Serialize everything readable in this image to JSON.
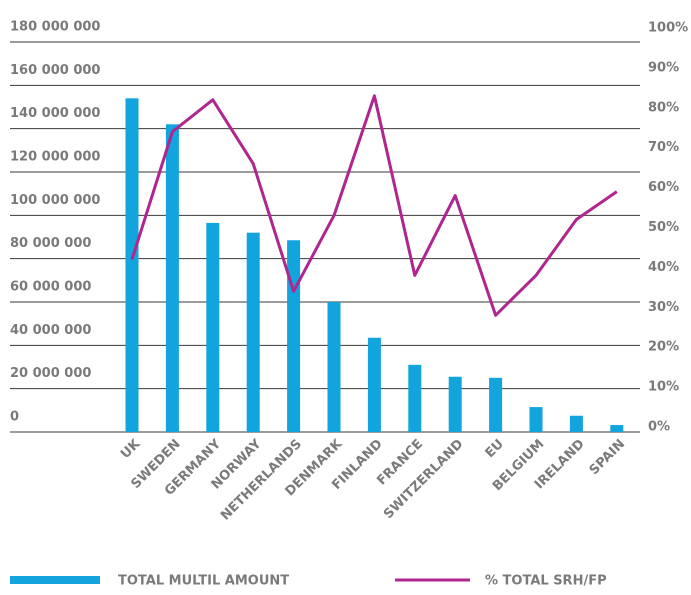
{
  "chart_data": {
    "type": "bar_line",
    "categories": [
      "UK",
      "SWEDEN",
      "GERMANY",
      "NORWAY",
      "NETHERLANDS",
      "DENMARK",
      "FINLAND",
      "FRANCE",
      "SWITZERLAND",
      "EU",
      "BELGIUM",
      "IRELAND",
      "SPAIN"
    ],
    "series": [
      {
        "name": "TOTAL MULTIL AMOUNT",
        "type": "bar",
        "color": "#12a4dd",
        "values": [
          154000000,
          142000000,
          96500000,
          92000000,
          88500000,
          60000000,
          43500000,
          31000000,
          25500000,
          25000000,
          11500000,
          7500000,
          3200000
        ]
      },
      {
        "name": "% TOTAL SRH/FP",
        "type": "line",
        "axis": "y2",
        "color": "#b0268f",
        "values": [
          42,
          74,
          82,
          66,
          34,
          53,
          83,
          38,
          58,
          28,
          38,
          52,
          59
        ]
      }
    ],
    "ylim": [
      0,
      180000000
    ],
    "yticks": [
      0,
      {
        "value": 20000000,
        "label": "20 000 000"
      },
      {
        "value": 40000000,
        "label": "40 000 000"
      },
      {
        "value": 60000000,
        "label": "60 000 000"
      },
      {
        "value": 80000000,
        "label": "80 000 000"
      },
      {
        "value": 100000000,
        "label": "100 000 000"
      },
      {
        "value": 120000000,
        "label": "120 000 000"
      },
      {
        "value": 140000000,
        "label": "140 000 000"
      },
      {
        "value": 160000000,
        "label": "160 000 000"
      },
      {
        "value": 180000000,
        "label": "180 000 000"
      }
    ],
    "y2lim": [
      0,
      100
    ],
    "y2ticks": [
      {
        "value": 0,
        "label": "0%"
      },
      {
        "value": 10,
        "label": "10%"
      },
      {
        "value": 20,
        "label": "20%"
      },
      {
        "value": 30,
        "label": "30%"
      },
      {
        "value": 40,
        "label": "40%"
      },
      {
        "value": 50,
        "label": "50%"
      },
      {
        "value": 60,
        "label": "60%"
      },
      {
        "value": 70,
        "label": "70%"
      },
      {
        "value": 80,
        "label": "80%"
      },
      {
        "value": 90,
        "label": "90%"
      },
      {
        "value": 100,
        "label": "100%"
      }
    ],
    "grid": true,
    "legend": "bottom"
  }
}
